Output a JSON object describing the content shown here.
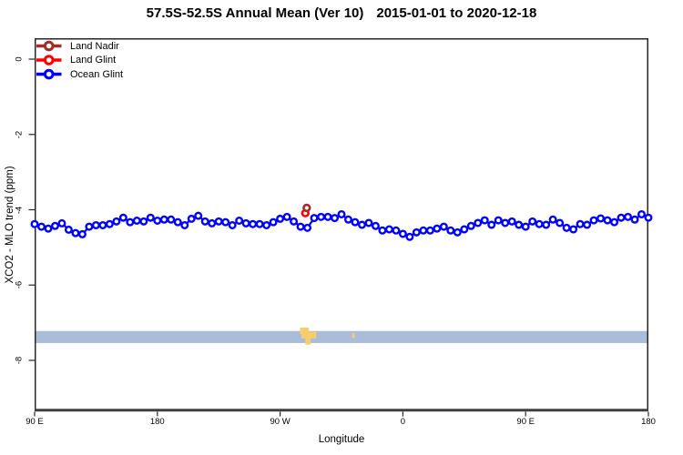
{
  "title": {
    "main": "57.5S-52.5S Annual Mean (Ver 10)",
    "date_range": "2015-01-01 to 2020-12-18"
  },
  "axes": {
    "x_label": "Longitude",
    "y_label": "XCO2 - MLO trend (ppm)",
    "x_tick_labels": [
      "90 E",
      "180",
      "90 W",
      "0",
      "90 E",
      "180"
    ],
    "y_tick_labels": [
      "0",
      "-2",
      "-4",
      "-6",
      "-8"
    ]
  },
  "legend": [
    {
      "label": "Land Nadir",
      "color": "#A52A2A"
    },
    {
      "label": "Land Glint",
      "color": "#FF0000"
    },
    {
      "label": "Ocean Glint",
      "color": "#0000FF"
    }
  ],
  "chart_data": {
    "type": "line",
    "title": "57.5S-52.5S Annual Mean (Ver 10)  2015-01-01 to 2020-12-18",
    "xlabel": "Longitude",
    "ylabel": "XCO2 - MLO trend (ppm)",
    "x_axis_wraps": "axis runs 90E > 180 > 90W > 0 > 90E > 180 (display degrees 90 to 540)",
    "xlim_display_degrees": [
      90,
      540
    ],
    "ylim": [
      -9.36,
      0.56
    ],
    "x_tick_display_degrees": [
      90,
      180,
      270,
      360,
      450,
      540
    ],
    "y_tick_values": [
      0,
      -2,
      -4,
      -6,
      -8
    ],
    "grid": false,
    "legend_position": "top-left inside plot",
    "series": [
      {
        "name": "Land Nadir",
        "color": "#A52A2A",
        "marker": "open-circle",
        "line": false,
        "points": [
          {
            "lon_display": 289.5,
            "value": -3.95
          }
        ]
      },
      {
        "name": "Land Glint",
        "color": "#FF0000",
        "marker": "open-circle",
        "line": false,
        "points": [
          {
            "lon_display": 288.5,
            "value": -4.09
          }
        ]
      },
      {
        "name": "Ocean Glint",
        "color": "#0000FF",
        "marker": "open-circle",
        "line": true,
        "lon_display_start": 90,
        "lon_display_step": 5,
        "values": [
          -4.38,
          -4.45,
          -4.5,
          -4.43,
          -4.36,
          -4.53,
          -4.62,
          -4.65,
          -4.45,
          -4.41,
          -4.41,
          -4.38,
          -4.31,
          -4.21,
          -4.33,
          -4.29,
          -4.31,
          -4.21,
          -4.29,
          -4.26,
          -4.26,
          -4.33,
          -4.41,
          -4.24,
          -4.16,
          -4.31,
          -4.36,
          -4.31,
          -4.33,
          -4.41,
          -4.29,
          -4.36,
          -4.38,
          -4.38,
          -4.41,
          -4.33,
          -4.24,
          -4.19,
          -4.31,
          -4.45,
          -4.48,
          -4.22,
          -4.19,
          -4.19,
          -4.22,
          -4.12,
          -4.26,
          -4.33,
          -4.4,
          -4.35,
          -4.43,
          -4.55,
          -4.52,
          -4.55,
          -4.64,
          -4.72,
          -4.6,
          -4.55,
          -4.55,
          -4.5,
          -4.45,
          -4.55,
          -4.6,
          -4.52,
          -4.43,
          -4.35,
          -4.28,
          -4.4,
          -4.28,
          -4.35,
          -4.31,
          -4.4,
          -4.45,
          -4.31,
          -4.38,
          -4.4,
          -4.26,
          -4.35,
          -4.48,
          -4.52,
          -4.38,
          -4.4,
          -4.28,
          -4.23,
          -4.28,
          -4.33,
          -4.21,
          -4.19,
          -4.26,
          -4.12,
          -4.21
        ]
      }
    ],
    "map_band": {
      "description": "latitude-band world-map strip: ocean band with land patches",
      "band_color": "#A9BDD9",
      "value_top": -7.22,
      "value_bottom": -7.54,
      "land_color": "#F6CE6E",
      "land_patches": [
        {
          "d0": 284.5,
          "d1": 291.0,
          "v0": -7.13,
          "v1": -7.3
        },
        {
          "d0": 285.5,
          "d1": 296.5,
          "v0": -7.24,
          "v1": -7.42
        },
        {
          "d0": 288.5,
          "d1": 292.5,
          "v0": -7.38,
          "v1": -7.58
        },
        {
          "d0": 322.8,
          "d1": 324.8,
          "v0": -7.28,
          "v1": -7.4
        }
      ]
    },
    "frame": {
      "border_color": "#262626",
      "axis_line_color": "#3F3F3F"
    }
  }
}
